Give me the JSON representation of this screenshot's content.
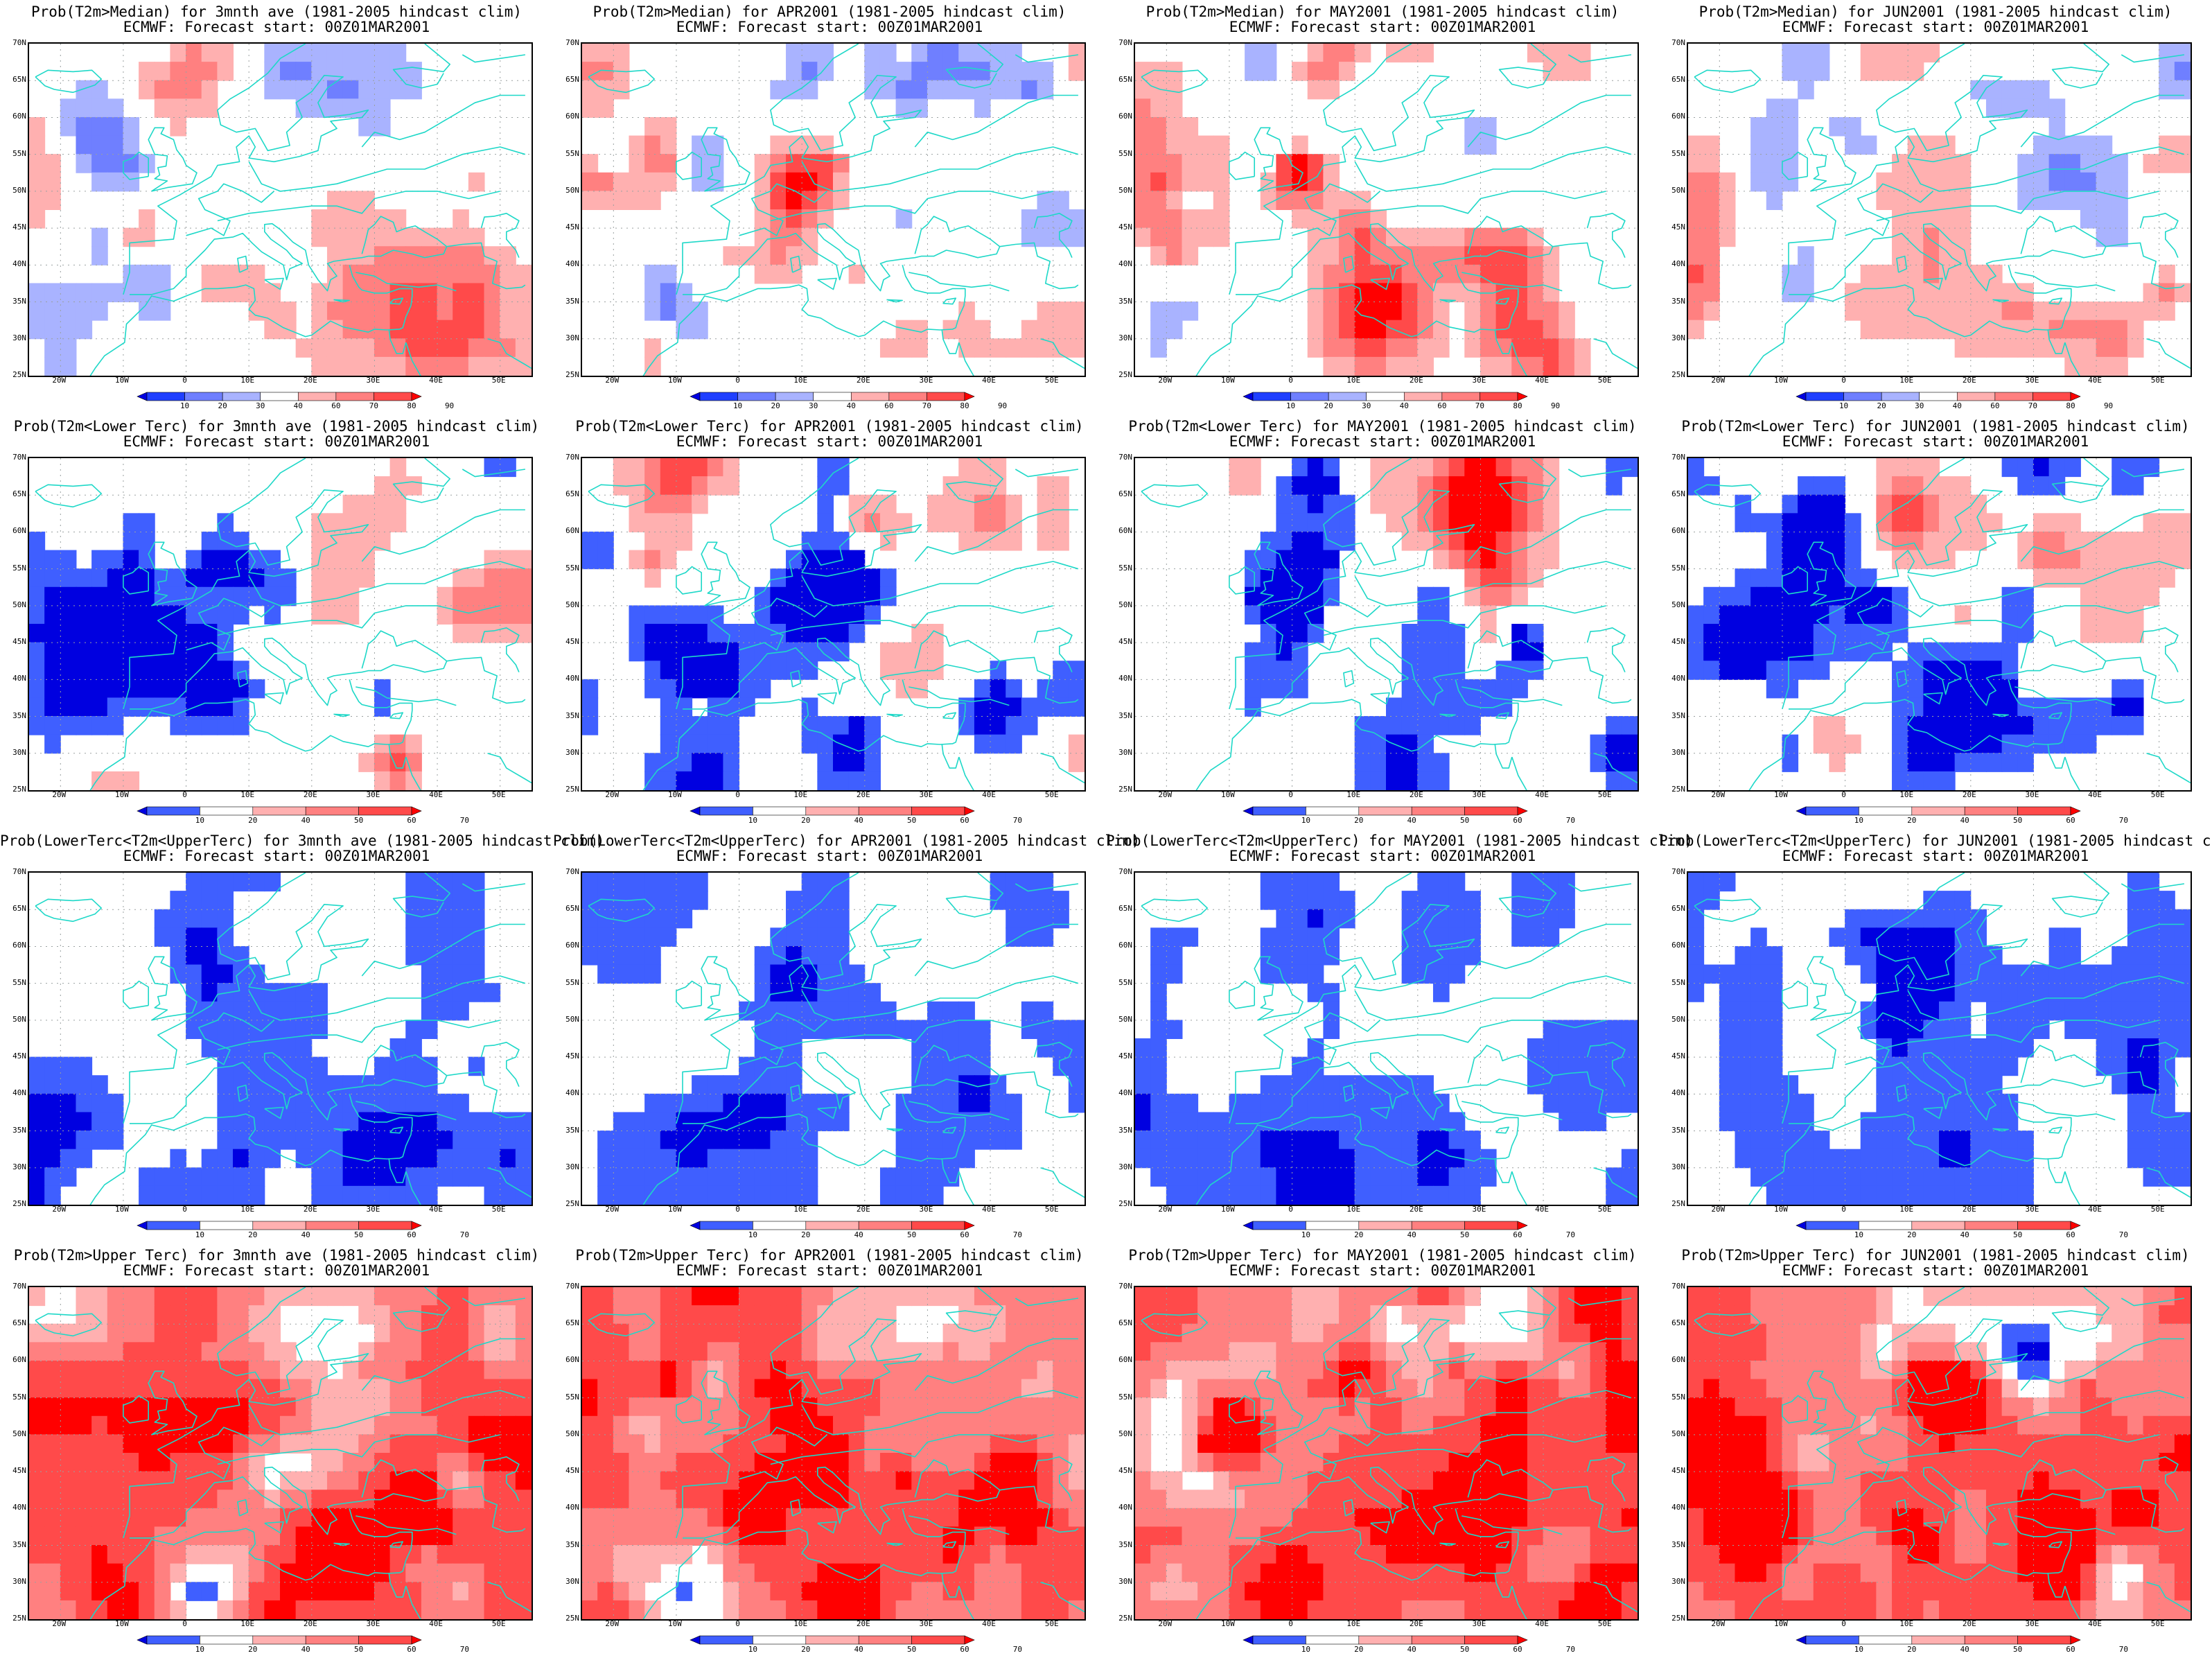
{
  "figure": {
    "forecast_line": "ECMWF: Forecast start: 00Z01MAR2001",
    "lat_labels": [
      "70N",
      "65N",
      "60N",
      "55N",
      "50N",
      "45N",
      "40N",
      "35N",
      "30N",
      "25N"
    ],
    "lon_labels": [
      "20W",
      "10W",
      "0",
      "10E",
      "20E",
      "30E",
      "40E",
      "50E"
    ],
    "colorbar_labels_median": [
      "10",
      "20",
      "30",
      "40",
      "60",
      "70",
      "80",
      "90"
    ],
    "colorbar_labels_tercile": [
      "10",
      "20",
      "40",
      "50",
      "60",
      "70"
    ],
    "colors_median": [
      "#0000e0",
      "#1f3fff",
      "#6f7fff",
      "#a9b3ff",
      "#ffffff",
      "#ffb0b0",
      "#ff8080",
      "#ff4a4a",
      "#ff0000"
    ],
    "colors_tercile": [
      "#0000e0",
      "#3f5fff",
      "#ffffff",
      "#ffb0b0",
      "#ff8080",
      "#ff4a4a",
      "#ff0000"
    ],
    "coast_color": "#1ed8c8"
  },
  "panels": [
    {
      "title": "Prob(T2m>Median) for 3mnth ave (1981-2005 hindcast clim)",
      "scale": "median",
      "field": "pos",
      "seed": 11
    },
    {
      "title": "Prob(T2m>Median) for APR2001 (1981-2005 hindcast clim)",
      "scale": "median",
      "field": "mixed",
      "seed": 23
    },
    {
      "title": "Prob(T2m>Median) for MAY2001 (1981-2005 hindcast clim)",
      "scale": "median",
      "field": "pos",
      "seed": 37
    },
    {
      "title": "Prob(T2m>Median) for JUN2001 (1981-2005 hindcast clim)",
      "scale": "median",
      "field": "pos",
      "seed": 41
    },
    {
      "title": "Prob(T2m<Lower Terc) for 3mnth ave (1981-2005 hindcast clim)",
      "scale": "tercile",
      "field": "lower",
      "seed": 53
    },
    {
      "title": "Prob(T2m<Lower Terc) for APR2001 (1981-2005 hindcast clim)",
      "scale": "tercile",
      "field": "lower",
      "seed": 67
    },
    {
      "title": "Prob(T2m<Lower Terc) for MAY2001 (1981-2005 hindcast clim)",
      "scale": "tercile",
      "field": "lower",
      "seed": 71
    },
    {
      "title": "Prob(T2m<Lower Terc) for JUN2001 (1981-2005 hindcast clim)",
      "scale": "tercile",
      "field": "lower",
      "seed": 83
    },
    {
      "title": "Prob(LowerTerc<T2m<UpperTerc) for 3mnth ave (1981-2005 hindcast clim)",
      "scale": "tercile",
      "field": "middle",
      "seed": 97
    },
    {
      "title": "Prob(LowerTerc<T2m<UpperTerc) for APR2001 (1981-2005 hindcast clim)",
      "scale": "tercile",
      "field": "middle",
      "seed": 101
    },
    {
      "title": "Prob(LowerTerc<T2m<UpperTerc) for MAY2001 (1981-2005 hindcast clim)",
      "scale": "tercile",
      "field": "middle",
      "seed": 113
    },
    {
      "title": "Prob(LowerTerc<T2m<UpperTerc) for JUN2001 (1981-2005 hindcast clim)",
      "scale": "tercile",
      "field": "middle",
      "seed": 127
    },
    {
      "title": "Prob(T2m>Upper Terc) for 3mnth ave (1981-2005 hindcast clim)",
      "scale": "tercile",
      "field": "upper",
      "seed": 131
    },
    {
      "title": "Prob(T2m>Upper Terc) for APR2001 (1981-2005 hindcast clim)",
      "scale": "tercile",
      "field": "upper",
      "seed": 149
    },
    {
      "title": "Prob(T2m>Upper Terc) for MAY2001 (1981-2005 hindcast clim)",
      "scale": "tercile",
      "field": "upper",
      "seed": 157
    },
    {
      "title": "Prob(T2m>Upper Terc) for JUN2001 (1981-2005 hindcast clim)",
      "scale": "tercile",
      "field": "upper",
      "seed": 163
    }
  ]
}
